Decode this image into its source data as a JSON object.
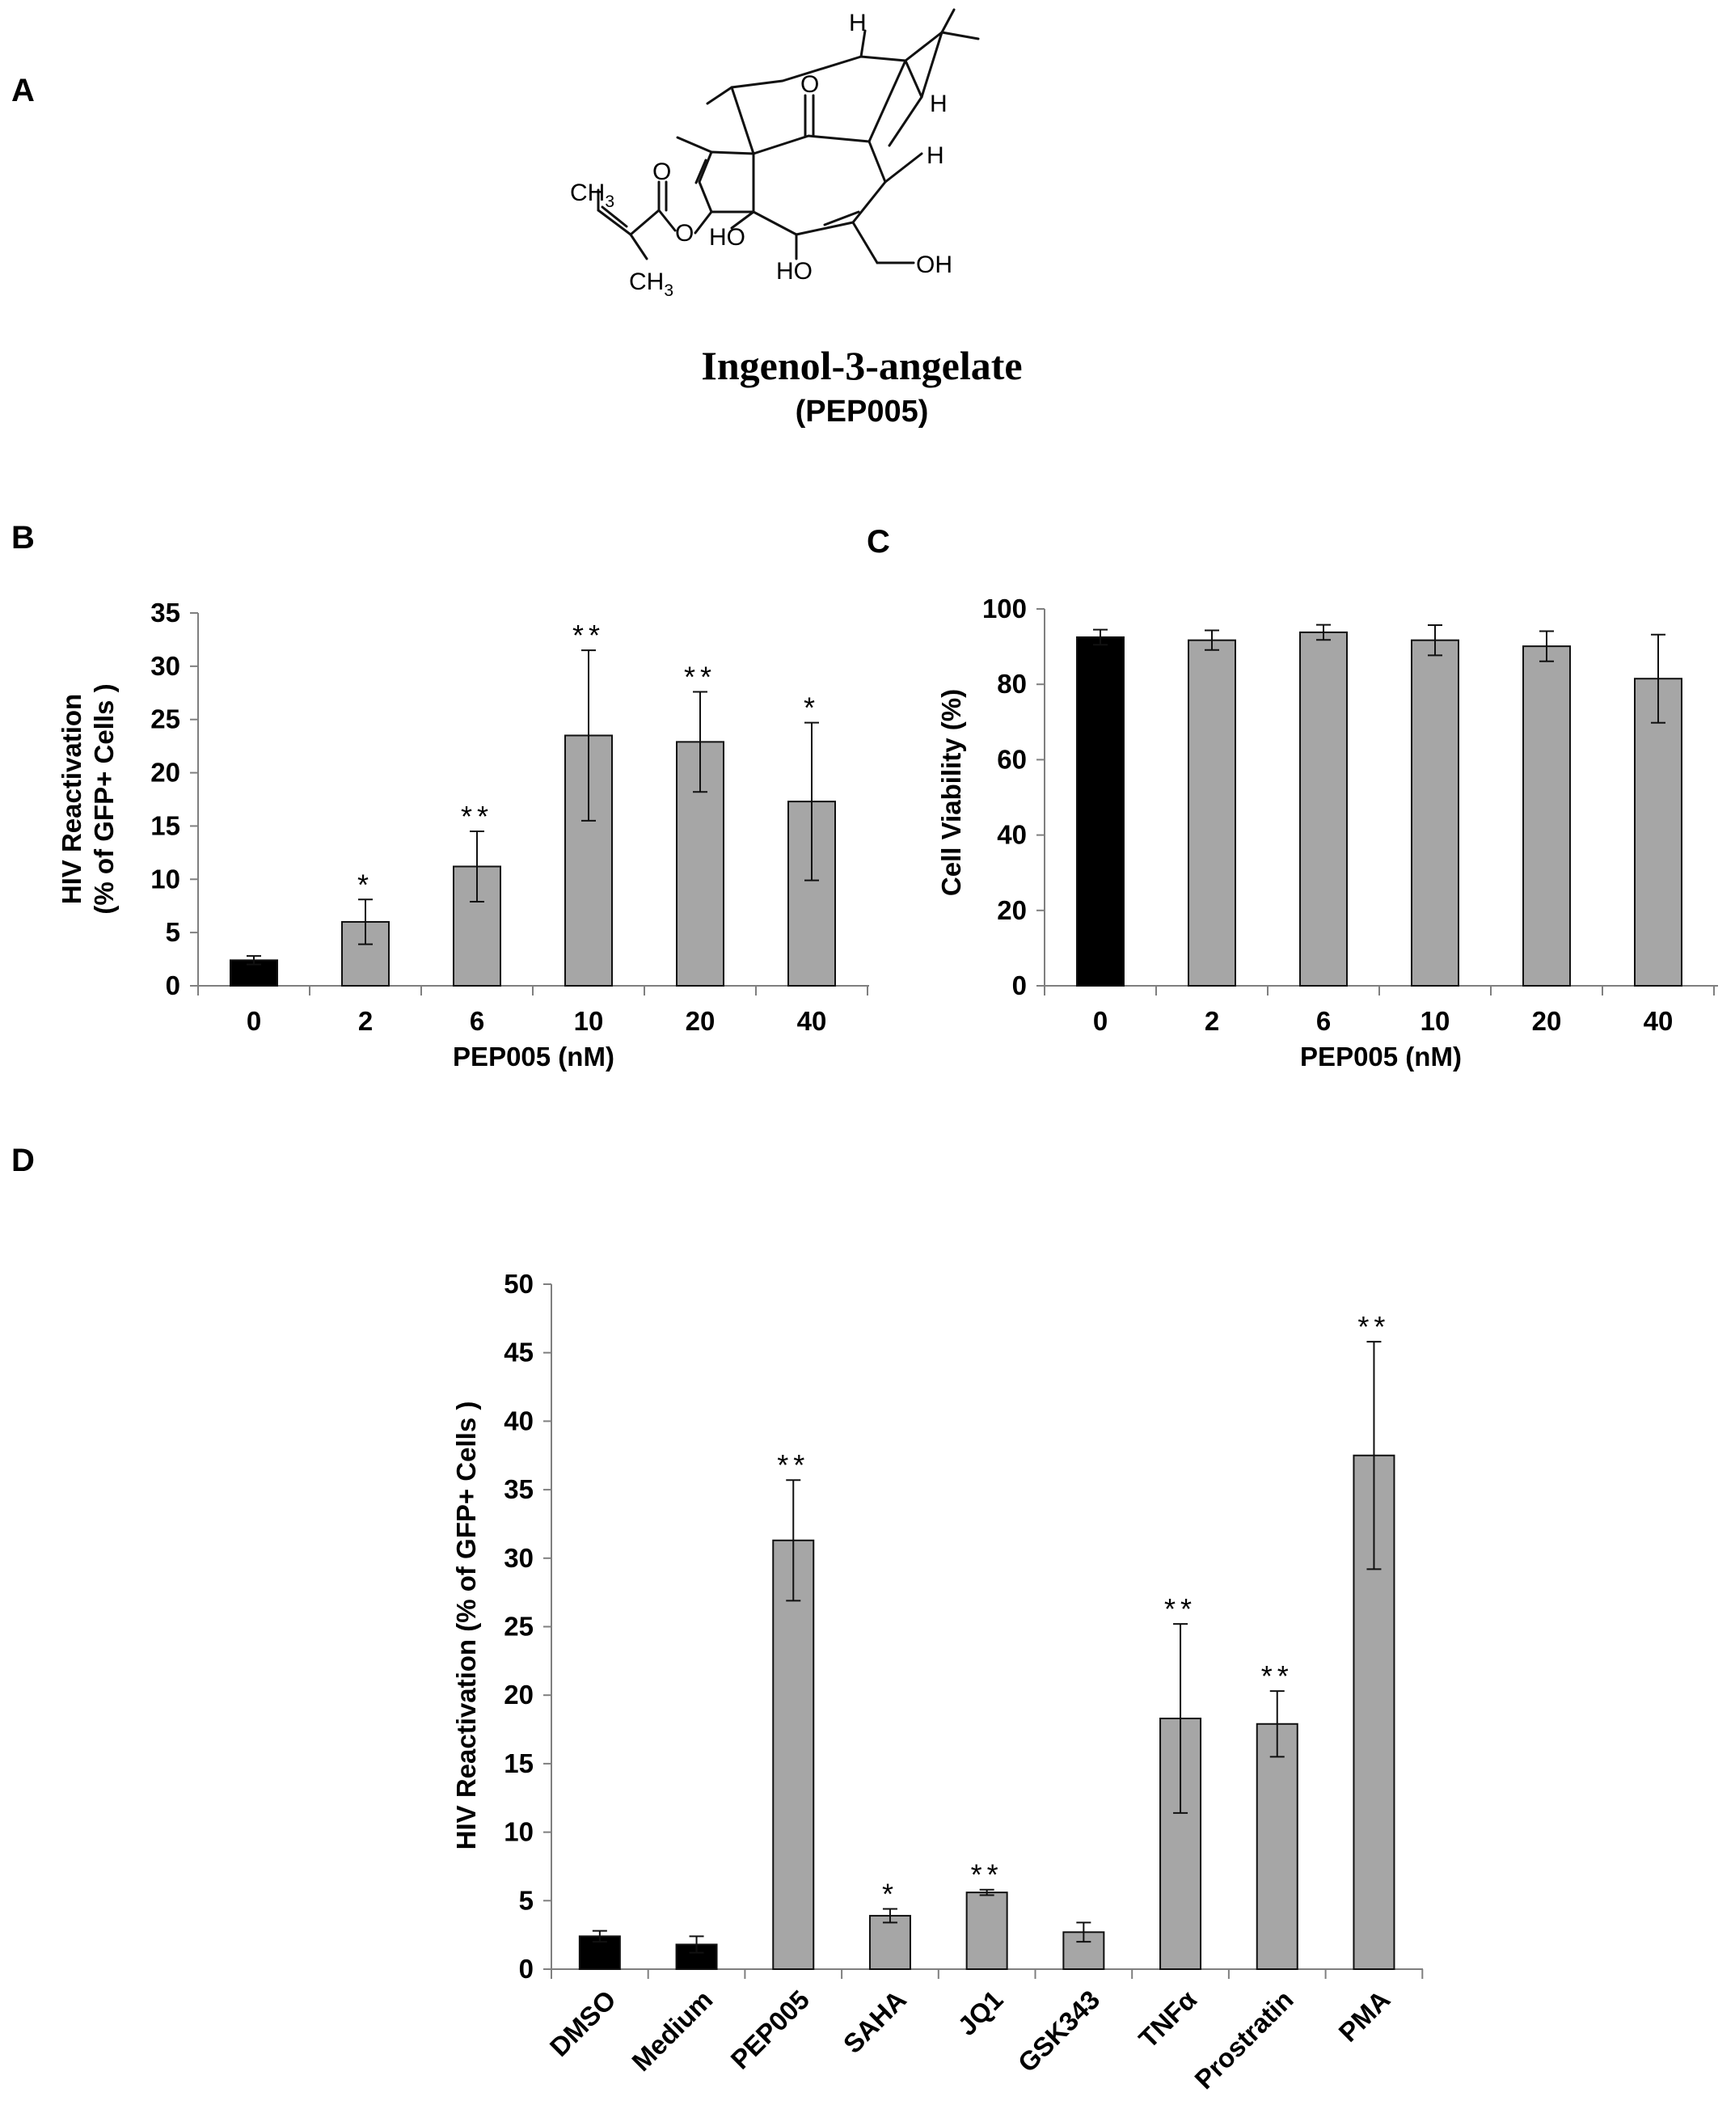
{
  "panels": {
    "a": "A",
    "b": "B",
    "c": "C",
    "d": "D"
  },
  "compound": {
    "name": "Ingenol-3-angelate",
    "code": "(PEP005)",
    "atoms": {
      "h": "H",
      "o": "O",
      "ho": "HO",
      "oh": "OH",
      "ch3": "CH",
      "sub3": "3"
    }
  },
  "colors": {
    "control": "#000000",
    "treatment": "#a6a6a6",
    "axis": "#7f7f7f"
  },
  "chart_data": [
    {
      "id": "B",
      "type": "bar",
      "title": "",
      "categories": [
        "0",
        "2",
        "6",
        "10",
        "20",
        "40"
      ],
      "values": [
        2.4,
        6.0,
        11.2,
        23.5,
        22.9,
        17.3
      ],
      "errors": [
        0.4,
        2.1,
        3.3,
        8.0,
        4.7,
        7.4
      ],
      "significance": [
        "",
        "*",
        "**",
        "**",
        "**",
        "*"
      ],
      "bar_colors": [
        "control",
        "treatment",
        "treatment",
        "treatment",
        "treatment",
        "treatment"
      ],
      "xlabel": "PEP005 (nM)",
      "ylabel_lines": [
        "HIV Reactivation",
        "(% of GFP+ Cells )"
      ],
      "ylim": [
        0,
        35
      ],
      "yticks": [
        0,
        5,
        10,
        15,
        20,
        25,
        30,
        35
      ],
      "grid": false
    },
    {
      "id": "C",
      "type": "bar",
      "title": "",
      "categories": [
        "0",
        "2",
        "6",
        "10",
        "20",
        "40"
      ],
      "values": [
        92.5,
        91.7,
        93.8,
        91.7,
        90.1,
        81.5
      ],
      "errors": [
        2.0,
        2.6,
        2.0,
        4.0,
        4.0,
        11.7
      ],
      "significance": [
        "",
        "",
        "",
        "",
        "",
        ""
      ],
      "bar_colors": [
        "control",
        "treatment",
        "treatment",
        "treatment",
        "treatment",
        "treatment"
      ],
      "xlabel": "PEP005 (nM)",
      "ylabel_lines": [
        "Cell Viability (%)"
      ],
      "ylim": [
        0,
        100
      ],
      "yticks": [
        0,
        20,
        40,
        60,
        80,
        100
      ],
      "grid": false
    },
    {
      "id": "D",
      "type": "bar",
      "title": "",
      "categories": [
        "DMSO",
        "Medium",
        "PEP005",
        "SAHA",
        "JQ1",
        "GSK343",
        "TNFα",
        "Prostratin",
        "PMA"
      ],
      "values": [
        2.4,
        1.8,
        31.3,
        3.9,
        5.6,
        2.7,
        18.3,
        17.9,
        37.5
      ],
      "errors": [
        0.4,
        0.6,
        4.4,
        0.5,
        0.2,
        0.7,
        6.9,
        2.4,
        8.3
      ],
      "significance": [
        "",
        "",
        "**",
        "*",
        "**",
        "",
        "**",
        "**",
        "**"
      ],
      "bar_colors": [
        "control",
        "control",
        "treatment",
        "treatment",
        "treatment",
        "treatment",
        "treatment",
        "treatment",
        "treatment"
      ],
      "xlabel": "",
      "ylabel_lines": [
        "HIV Reactivation (% of GFP+ Cells )"
      ],
      "ylim": [
        0,
        50
      ],
      "yticks": [
        0,
        5,
        10,
        15,
        20,
        25,
        30,
        35,
        40,
        45,
        50
      ],
      "grid": false,
      "rotated_tick_labels": true
    }
  ]
}
